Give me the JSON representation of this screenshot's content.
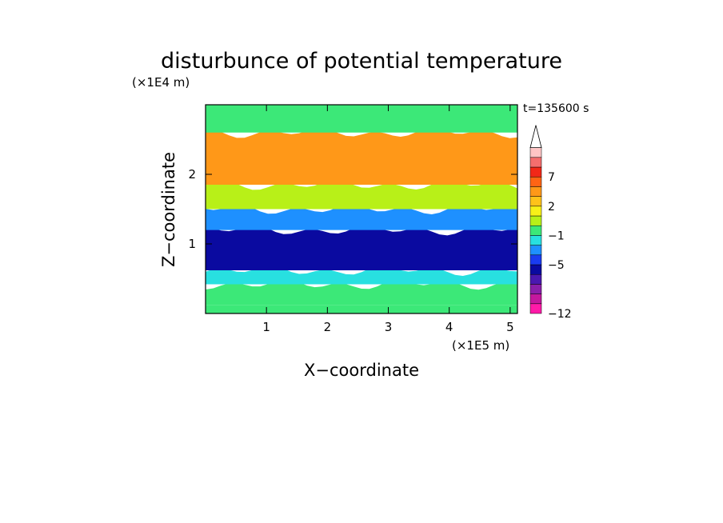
{
  "chart_data": {
    "type": "heatmap",
    "title": "disturbunce of potential temperature",
    "xlabel": "X−coordinate",
    "ylabel": "Z−coordinate",
    "x_unit": "(×1E5 m)",
    "y_unit": "(×1E4 m)",
    "time_label": "t=135600 s",
    "xlim": [
      0,
      5.12
    ],
    "ylim": [
      0,
      3.0
    ],
    "x_ticks": [
      1,
      2,
      3,
      4,
      5
    ],
    "x_tick_labels": [
      "1",
      "2",
      "3",
      "4",
      "5"
    ],
    "y_ticks": [
      1,
      2
    ],
    "y_tick_labels": [
      "1",
      "2"
    ],
    "colorbar": {
      "colors": [
        "#ff1aa8",
        "#c4189e",
        "#8a1faa",
        "#4a18b0",
        "#0a0aa0",
        "#1a3cf0",
        "#1e90ff",
        "#28e0e0",
        "#3ce878",
        "#b8f018",
        "#f8f018",
        "#ffc21a",
        "#ff9818",
        "#ff6414",
        "#f22818",
        "#f46e6e",
        "#ffc6c6"
      ],
      "extend_top_color": "#ffffff",
      "labels": [
        {
          "value": "−12",
          "index": 0
        },
        {
          "value": "−5",
          "index": 5
        },
        {
          "value": "−1",
          "index": 8
        },
        {
          "value": "2",
          "index": 11
        },
        {
          "value": "7",
          "index": 14
        }
      ]
    },
    "field_bands": [
      {
        "z_range": [
          0.0,
          0.12
        ],
        "level_index": 8
      },
      {
        "z_range": [
          0.12,
          0.42
        ],
        "level_index": 8
      },
      {
        "z_range": [
          0.42,
          0.62
        ],
        "level_index": 7
      },
      {
        "z_range": [
          0.62,
          1.2
        ],
        "level_index": 4
      },
      {
        "z_range": [
          1.2,
          1.5
        ],
        "level_index": 6
      },
      {
        "z_range": [
          1.5,
          1.85
        ],
        "level_index": 9
      },
      {
        "z_range": [
          1.85,
          2.6
        ],
        "level_index": 12
      },
      {
        "z_range": [
          2.6,
          3.0
        ],
        "level_index": 8
      }
    ],
    "grid": false
  }
}
